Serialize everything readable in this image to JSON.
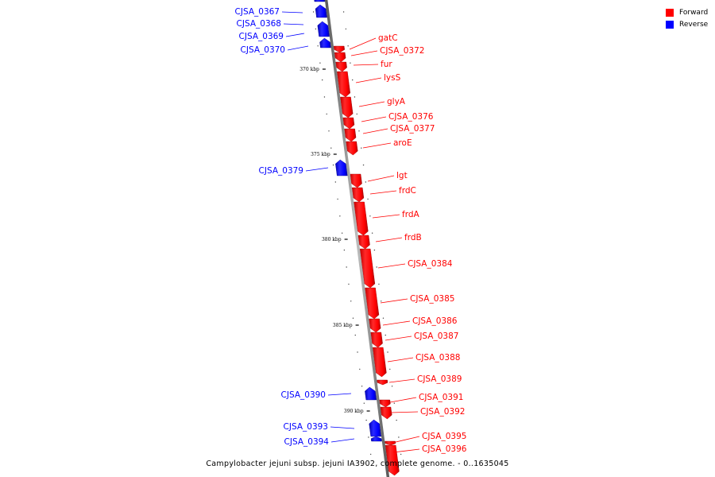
{
  "legend": {
    "forward_label": "Forward",
    "reverse_label": "Reverse",
    "forward_color": "#ff0000",
    "reverse_color": "#0000ff"
  },
  "caption": "Campylobacter jejuni subsp. jejuni IA3902, complete genome. - 0..1635045",
  "colors": {
    "backbone": "#777777",
    "forward": "#ff0000",
    "reverse": "#0000ff"
  },
  "ticks": [
    "370 kbp",
    "375 kbp",
    "380 kbp",
    "385 kbp",
    "390 kbp"
  ],
  "genes": [
    {
      "name": "CJSA_0367",
      "strand": "reverse"
    },
    {
      "name": "CJSA_0368",
      "strand": "reverse"
    },
    {
      "name": "CJSA_0369",
      "strand": "reverse"
    },
    {
      "name": "CJSA_0370",
      "strand": "reverse"
    },
    {
      "name": "gatC",
      "strand": "forward"
    },
    {
      "name": "CJSA_0372",
      "strand": "forward"
    },
    {
      "name": "fur",
      "strand": "forward"
    },
    {
      "name": "lysS",
      "strand": "forward"
    },
    {
      "name": "glyA",
      "strand": "forward"
    },
    {
      "name": "CJSA_0376",
      "strand": "forward"
    },
    {
      "name": "CJSA_0377",
      "strand": "forward"
    },
    {
      "name": "aroE",
      "strand": "forward"
    },
    {
      "name": "CJSA_0379",
      "strand": "reverse"
    },
    {
      "name": "lgt",
      "strand": "forward"
    },
    {
      "name": "frdC",
      "strand": "forward"
    },
    {
      "name": "frdA",
      "strand": "forward"
    },
    {
      "name": "frdB",
      "strand": "forward"
    },
    {
      "name": "CJSA_0384",
      "strand": "forward"
    },
    {
      "name": "CJSA_0385",
      "strand": "forward"
    },
    {
      "name": "CJSA_0386",
      "strand": "forward"
    },
    {
      "name": "CJSA_0387",
      "strand": "forward"
    },
    {
      "name": "CJSA_0388",
      "strand": "forward"
    },
    {
      "name": "CJSA_0389",
      "strand": "forward"
    },
    {
      "name": "CJSA_0390",
      "strand": "reverse"
    },
    {
      "name": "CJSA_0391",
      "strand": "forward"
    },
    {
      "name": "CJSA_0392",
      "strand": "forward"
    },
    {
      "name": "CJSA_0393",
      "strand": "reverse"
    },
    {
      "name": "CJSA_0394",
      "strand": "reverse"
    },
    {
      "name": "CJSA_0395",
      "strand": "forward"
    },
    {
      "name": "CJSA_0396",
      "strand": "forward"
    }
  ]
}
